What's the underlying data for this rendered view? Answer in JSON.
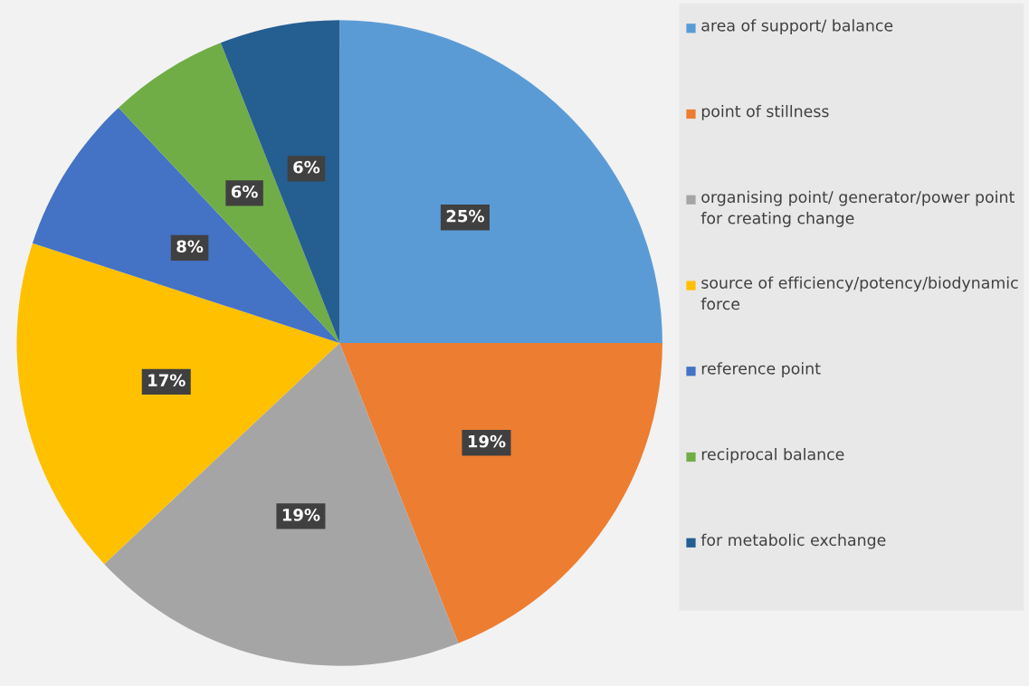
{
  "chart_data": {
    "type": "pie",
    "categories": [
      "area of support/ balance",
      "point of stillness",
      "organising point/ generator/power point for creating change",
      "source of efficiency/potency/biodynamic force",
      "reference point",
      "reciprocal balance",
      "for metabolic exchange"
    ],
    "values": [
      25,
      19,
      19,
      17,
      8,
      6,
      6
    ],
    "colors": [
      "#5b9bd5",
      "#ed7d31",
      "#a5a5a5",
      "#ffc000",
      "#4472c4",
      "#70ad47",
      "#255e91"
    ],
    "value_labels": [
      "25%",
      "19%",
      "19%",
      "17%",
      "8%",
      "6%",
      "6%"
    ],
    "legend": "right"
  }
}
